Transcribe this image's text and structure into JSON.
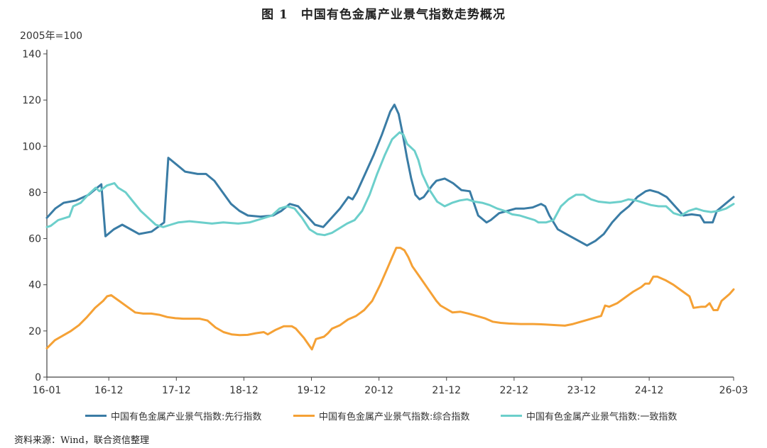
{
  "title": "图 1　中国有色金属产业景气指数走势概况",
  "unit_label": "2005年=100",
  "source": "资料来源：Wind，联合资信整理",
  "colors": {
    "leading": "#3A7CA5",
    "composite": "#F5A135",
    "coincident": "#6CCFCB",
    "axis": "#444444",
    "grid": "#d9d9d9"
  },
  "chart_data": {
    "type": "line",
    "title": "中国有色金属产业景气指数走势概况",
    "ylim": [
      0,
      140
    ],
    "yticks": [
      0,
      20,
      40,
      60,
      80,
      100,
      120,
      140
    ],
    "x_tick_labels": [
      "16-01",
      "16-12",
      "17-12",
      "18-12",
      "19-12",
      "20-12",
      "21-12",
      "22-12",
      "23-12",
      "24-12",
      "26-03"
    ],
    "x_tick_index": [
      0,
      11,
      23,
      35,
      47,
      59,
      71,
      83,
      95,
      107,
      122
    ],
    "x_count": 123,
    "legend_position": "bottom",
    "series": [
      {
        "name": "中国有色金属产业景气指数:先行指数",
        "color": "#3A7CA5",
        "points": [
          [
            0,
            69
          ],
          [
            2,
            73
          ],
          [
            4,
            75.5
          ],
          [
            7,
            76.5
          ],
          [
            10,
            79
          ],
          [
            12,
            82
          ],
          [
            13,
            83.5
          ],
          [
            14,
            61
          ],
          [
            16,
            64
          ],
          [
            18,
            66
          ],
          [
            20,
            64
          ],
          [
            22,
            62
          ],
          [
            25,
            63
          ],
          [
            28,
            67
          ],
          [
            29,
            95
          ],
          [
            31,
            92
          ],
          [
            33,
            89
          ],
          [
            36,
            88
          ],
          [
            38,
            88
          ],
          [
            40,
            85
          ],
          [
            42,
            80
          ],
          [
            44,
            75
          ],
          [
            46,
            72
          ],
          [
            48,
            70
          ],
          [
            51,
            69.5
          ],
          [
            54,
            70
          ],
          [
            56,
            72
          ],
          [
            58,
            75
          ],
          [
            60,
            74
          ],
          [
            62,
            70
          ],
          [
            64,
            66
          ],
          [
            66,
            65
          ],
          [
            68,
            69
          ],
          [
            70,
            73
          ],
          [
            72,
            78
          ],
          [
            73,
            77
          ],
          [
            74,
            80
          ],
          [
            76,
            88
          ],
          [
            78,
            96
          ],
          [
            80,
            105
          ],
          [
            82,
            115
          ],
          [
            83,
            118
          ],
          [
            84,
            114
          ],
          [
            85,
            105
          ],
          [
            86,
            95
          ],
          [
            87,
            86
          ],
          [
            88,
            79
          ],
          [
            89,
            77
          ],
          [
            90,
            78
          ],
          [
            92,
            83
          ],
          [
            93,
            85
          ],
          [
            95,
            86
          ],
          [
            97,
            84
          ],
          [
            99,
            81
          ],
          [
            101,
            80.5
          ],
          [
            103,
            70
          ],
          [
            105,
            67
          ],
          [
            106,
            68
          ],
          [
            108,
            71
          ],
          [
            110,
            72
          ],
          [
            112,
            73
          ],
          [
            114,
            73
          ],
          [
            116,
            73.5
          ],
          [
            118,
            75
          ],
          [
            119,
            74
          ],
          [
            120,
            70
          ],
          [
            122,
            64
          ],
          [
            124,
            62
          ],
          [
            126,
            60
          ],
          [
            128,
            58
          ],
          [
            129,
            57
          ],
          [
            131,
            59
          ],
          [
            133,
            62
          ],
          [
            135,
            67
          ],
          [
            137,
            71
          ],
          [
            139,
            74
          ],
          [
            141,
            78
          ],
          [
            143,
            80.5
          ],
          [
            144,
            81
          ],
          [
            146,
            80
          ],
          [
            148,
            78
          ],
          [
            150,
            74
          ],
          [
            152,
            70
          ],
          [
            154,
            70.5
          ],
          [
            156,
            70
          ],
          [
            157,
            67
          ],
          [
            159,
            67
          ],
          [
            160,
            72
          ],
          [
            162,
            75
          ],
          [
            164,
            78
          ]
        ]
      },
      {
        "name": "中国有色金属产业景气指数:综合指数",
        "color": "#F5A135",
        "points": [
          [
            0,
            12.5
          ],
          [
            2,
            16
          ],
          [
            4,
            18
          ],
          [
            6,
            20
          ],
          [
            8,
            22.5
          ],
          [
            10,
            26
          ],
          [
            12,
            30
          ],
          [
            14,
            33
          ],
          [
            15,
            35
          ],
          [
            16,
            35.5
          ],
          [
            18,
            33
          ],
          [
            20,
            30.5
          ],
          [
            22,
            28
          ],
          [
            24,
            27.5
          ],
          [
            26,
            27.5
          ],
          [
            28,
            27
          ],
          [
            30,
            26
          ],
          [
            32,
            25.5
          ],
          [
            34,
            25.3
          ],
          [
            36,
            25.3
          ],
          [
            38,
            25.3
          ],
          [
            40,
            24.5
          ],
          [
            42,
            21.5
          ],
          [
            44,
            19.5
          ],
          [
            46,
            18.5
          ],
          [
            48,
            18.2
          ],
          [
            50,
            18.3
          ],
          [
            52,
            19
          ],
          [
            54,
            19.5
          ],
          [
            55,
            18.5
          ],
          [
            57,
            20.5
          ],
          [
            59,
            22
          ],
          [
            61,
            22
          ],
          [
            62,
            21
          ],
          [
            64,
            17
          ],
          [
            66,
            12
          ],
          [
            67,
            16.5
          ],
          [
            69,
            17.5
          ],
          [
            70,
            19
          ],
          [
            71,
            21
          ],
          [
            73,
            22.5
          ],
          [
            75,
            25
          ],
          [
            77,
            26.5
          ],
          [
            79,
            29
          ],
          [
            81,
            33
          ],
          [
            83,
            40
          ],
          [
            85,
            48
          ],
          [
            86,
            52
          ],
          [
            87,
            56
          ],
          [
            88,
            56
          ],
          [
            89,
            55
          ],
          [
            90,
            52
          ],
          [
            91,
            48
          ],
          [
            93,
            43
          ],
          [
            95,
            38
          ],
          [
            97,
            33
          ],
          [
            98,
            31
          ],
          [
            100,
            29
          ],
          [
            101,
            28
          ],
          [
            103,
            28.3
          ],
          [
            105,
            27.5
          ],
          [
            107,
            26.5
          ],
          [
            109,
            25.5
          ],
          [
            111,
            24
          ],
          [
            113,
            23.5
          ],
          [
            115,
            23.2
          ],
          [
            118,
            23
          ],
          [
            121,
            23
          ],
          [
            124,
            22.8
          ],
          [
            127,
            22.5
          ],
          [
            129,
            22.3
          ],
          [
            131,
            23
          ],
          [
            133,
            24
          ],
          [
            135,
            25
          ],
          [
            137,
            26
          ],
          [
            138,
            26.5
          ],
          [
            139,
            31
          ],
          [
            140,
            30.5
          ],
          [
            142,
            32
          ],
          [
            144,
            34.5
          ],
          [
            146,
            37
          ],
          [
            148,
            39
          ],
          [
            149,
            40.5
          ],
          [
            150,
            40.5
          ],
          [
            151,
            43.5
          ],
          [
            152,
            43.5
          ],
          [
            154,
            42
          ],
          [
            156,
            40
          ],
          [
            158,
            37.5
          ],
          [
            160,
            35
          ],
          [
            161,
            30
          ],
          [
            163,
            30.5
          ],
          [
            164,
            30.5
          ],
          [
            165,
            32
          ],
          [
            166,
            29
          ],
          [
            167,
            29
          ],
          [
            168,
            33
          ],
          [
            170,
            36
          ],
          [
            171,
            38
          ]
        ]
      },
      {
        "name": "中国有色金属产业景气指数:一致指数",
        "color": "#6CCFCB",
        "points": [
          [
            0,
            65
          ],
          [
            1,
            65.5
          ],
          [
            3,
            68
          ],
          [
            6,
            69.5
          ],
          [
            7,
            74
          ],
          [
            9,
            75.5
          ],
          [
            11,
            79
          ],
          [
            13,
            82
          ],
          [
            14,
            80.5
          ],
          [
            16,
            83
          ],
          [
            18,
            84
          ],
          [
            19,
            82
          ],
          [
            21,
            80
          ],
          [
            23,
            76
          ],
          [
            25,
            72
          ],
          [
            27,
            69
          ],
          [
            29,
            66
          ],
          [
            31,
            65
          ],
          [
            33,
            66
          ],
          [
            35,
            67
          ],
          [
            38,
            67.5
          ],
          [
            41,
            67
          ],
          [
            44,
            66.5
          ],
          [
            47,
            67
          ],
          [
            51,
            66.5
          ],
          [
            54,
            67
          ],
          [
            57,
            68.5
          ],
          [
            60,
            70
          ],
          [
            62,
            73
          ],
          [
            64,
            74
          ],
          [
            66,
            73
          ],
          [
            68,
            69
          ],
          [
            70,
            64
          ],
          [
            72,
            62
          ],
          [
            74,
            61.5
          ],
          [
            76,
            62.5
          ],
          [
            78,
            64.5
          ],
          [
            80,
            66.5
          ],
          [
            82,
            68
          ],
          [
            84,
            72
          ],
          [
            86,
            79
          ],
          [
            88,
            88
          ],
          [
            90,
            96
          ],
          [
            92,
            103
          ],
          [
            94,
            106
          ],
          [
            95,
            105
          ],
          [
            96,
            101
          ],
          [
            98,
            98
          ],
          [
            99,
            94
          ],
          [
            100,
            88
          ],
          [
            102,
            81
          ],
          [
            104,
            76
          ],
          [
            106,
            74
          ],
          [
            108,
            75.5
          ],
          [
            110,
            76.5
          ],
          [
            112,
            77
          ],
          [
            114,
            76
          ],
          [
            116,
            75.5
          ],
          [
            118,
            74.5
          ],
          [
            120,
            73
          ],
          [
            122,
            72
          ],
          [
            124,
            70.5
          ],
          [
            126,
            70
          ],
          [
            128,
            69
          ],
          [
            130,
            68
          ],
          [
            131,
            67
          ],
          [
            133,
            67
          ],
          [
            135,
            68
          ],
          [
            137,
            74
          ],
          [
            139,
            77
          ],
          [
            141,
            79
          ],
          [
            143,
            79
          ],
          [
            145,
            77
          ],
          [
            147,
            76
          ],
          [
            150,
            75.5
          ],
          [
            153,
            76
          ],
          [
            155,
            77
          ],
          [
            157,
            76.5
          ],
          [
            159,
            75.5
          ],
          [
            161,
            74.5
          ],
          [
            163,
            74
          ],
          [
            165,
            74
          ],
          [
            167,
            71
          ],
          [
            169,
            70
          ],
          [
            171,
            72
          ],
          [
            173,
            73
          ],
          [
            175,
            72
          ],
          [
            177,
            71.5
          ],
          [
            179,
            72
          ],
          [
            181,
            73
          ],
          [
            183,
            75
          ]
        ]
      }
    ]
  }
}
